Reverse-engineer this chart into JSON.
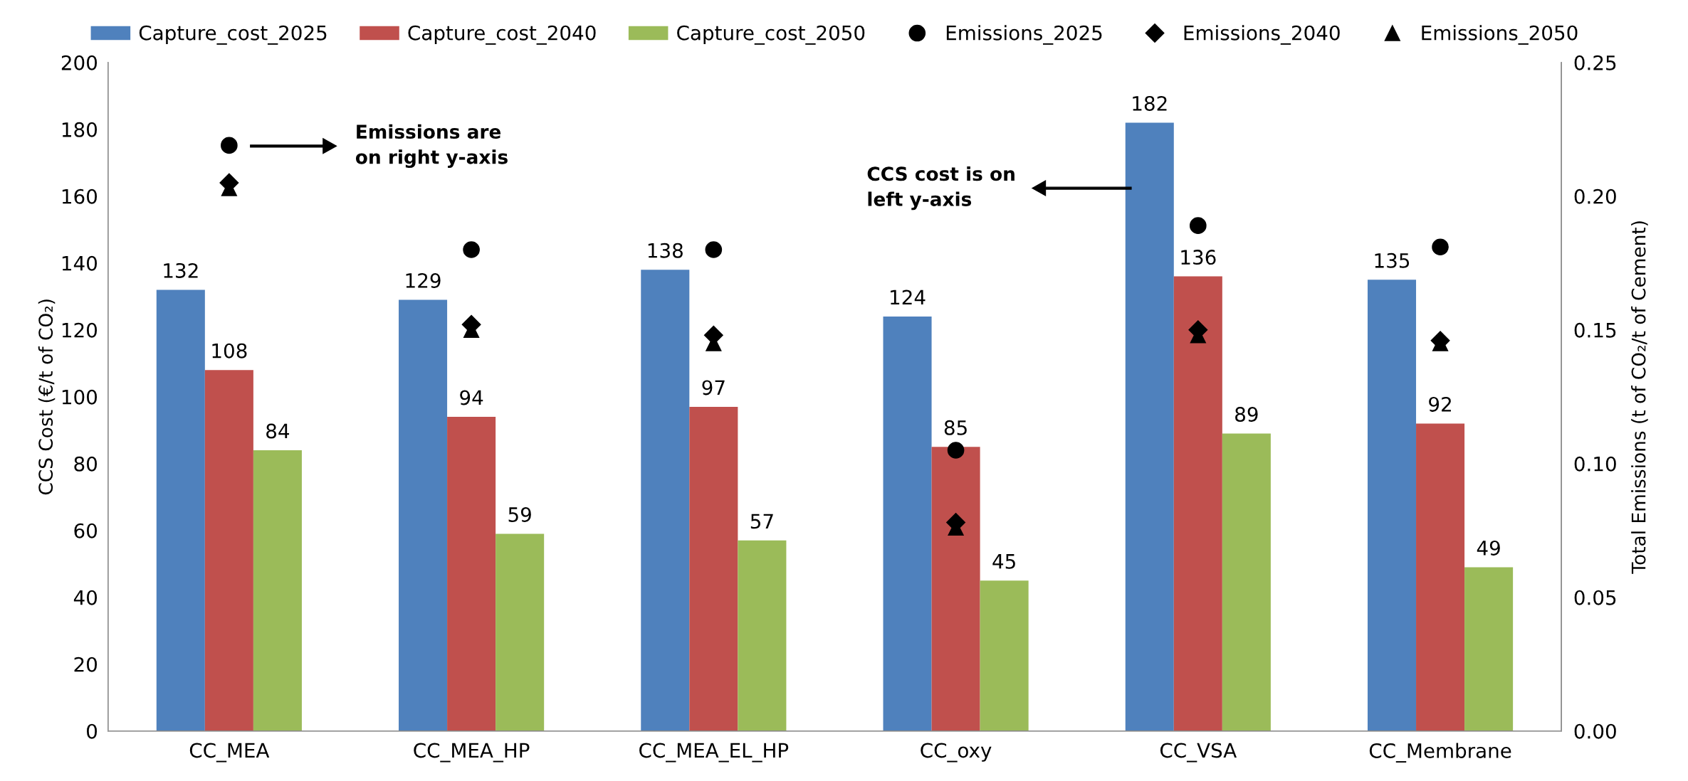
{
  "chart_data": {
    "type": "bar",
    "ylabel": "CCS Cost (€/t of CO₂)",
    "y2label": "Total Emissions (t of CO₂/t of Cement)",
    "categories": [
      "CC_MEA",
      "CC_MEA_HP",
      "CC_MEA_EL_HP",
      "CC_oxy",
      "CC_VSA",
      "CC_Membrane"
    ],
    "series": [
      {
        "name": "Capture_cost_2025",
        "color": "#4f81bd",
        "values": [
          132,
          129,
          138,
          124,
          182,
          135
        ],
        "data_labels": true
      },
      {
        "name": "Capture_cost_2040",
        "color": "#c0504d",
        "values": [
          108,
          94,
          97,
          85,
          136,
          92
        ],
        "data_labels": true
      },
      {
        "name": "Capture_cost_2050",
        "color": "#9bbb59",
        "values": [
          84,
          59,
          57,
          45,
          89,
          49
        ],
        "data_labels": true
      },
      {
        "name": "Emissions_2025",
        "type": "scatter",
        "axis": "y2",
        "marker": "circle",
        "color": "#000000",
        "values": [
          0.219,
          0.18,
          0.18,
          0.105,
          0.189,
          0.181
        ]
      },
      {
        "name": "Emissions_2040",
        "type": "scatter",
        "axis": "y2",
        "marker": "diamond",
        "color": "#000000",
        "values": [
          0.205,
          0.152,
          0.148,
          0.078,
          0.15,
          0.146
        ]
      },
      {
        "name": "Emissions_2050",
        "type": "scatter",
        "axis": "y2",
        "marker": "triangle",
        "color": "#000000",
        "values": [
          0.203,
          0.15,
          0.145,
          0.076,
          0.148,
          0.145
        ]
      }
    ],
    "ylim": [
      0,
      200
    ],
    "yticks": [
      0,
      20,
      40,
      60,
      80,
      100,
      120,
      140,
      160,
      180,
      200
    ],
    "y2lim": [
      0,
      0.25
    ],
    "y2ticks": [
      {
        "value": 0,
        "label": "0.00"
      },
      {
        "value": 0.05,
        "label": "0.05"
      },
      {
        "value": 0.1,
        "label": "0.10"
      },
      {
        "value": 0.15,
        "label": "0.15"
      },
      {
        "value": 0.2,
        "label": "0.20"
      },
      {
        "value": 0.25,
        "label": "0.25"
      }
    ],
    "annotations": [
      "Emissions are\non right y-axis",
      "CCS cost is on\nleft y-axis"
    ],
    "grid": false,
    "legend": "top"
  }
}
